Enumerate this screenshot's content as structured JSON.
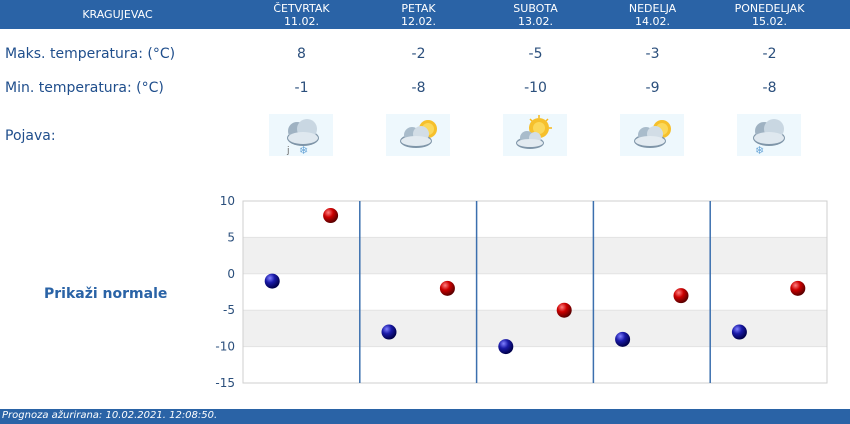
{
  "header": {
    "city": "KRAGUJEVAC",
    "days": [
      {
        "name": "ČETVRTAK",
        "date": "11.02."
      },
      {
        "name": "PETAK",
        "date": "12.02."
      },
      {
        "name": "SUBOTA",
        "date": "13.02."
      },
      {
        "name": "NEDELJA",
        "date": "14.02."
      },
      {
        "name": "PONEDELJAK",
        "date": "15.02."
      }
    ]
  },
  "rows": {
    "max_label": "Maks. temperatura: (°C)",
    "min_label": "Min. temperatura: (°C)",
    "phen_label": "Pojava:",
    "max": [
      "8",
      "-2",
      "-5",
      "-3",
      "-2"
    ],
    "min": [
      "-1",
      "-8",
      "-10",
      "-9",
      "-8"
    ],
    "icons": [
      "cloud-light-snow-icon",
      "partly-cloudy-icon",
      "mostly-sunny-icon",
      "partly-cloudy-icon",
      "cloud-snow-icon"
    ]
  },
  "normals_link": "Prikaži normale",
  "footer": "Prognoza ažurirana:  10.02.2021. 12:08:50.",
  "colors": {
    "header_bg": "#2a63a6",
    "max_dot": "#cc0000",
    "min_dot": "#1a1aa8"
  },
  "chart_data": {
    "type": "scatter",
    "categories": [
      "11.02.",
      "12.02.",
      "13.02.",
      "14.02.",
      "15.02."
    ],
    "series": [
      {
        "values": [
          8,
          -2,
          -5,
          -3,
          -2
        ]
      },
      {
        "values": [
          -1,
          -8,
          -10,
          -9,
          -8
        ]
      }
    ],
    "ylim": [
      -15,
      10
    ],
    "yticks": [
      "10",
      "5",
      "0",
      "-5",
      "-10",
      "-15"
    ],
    "grid": true
  }
}
